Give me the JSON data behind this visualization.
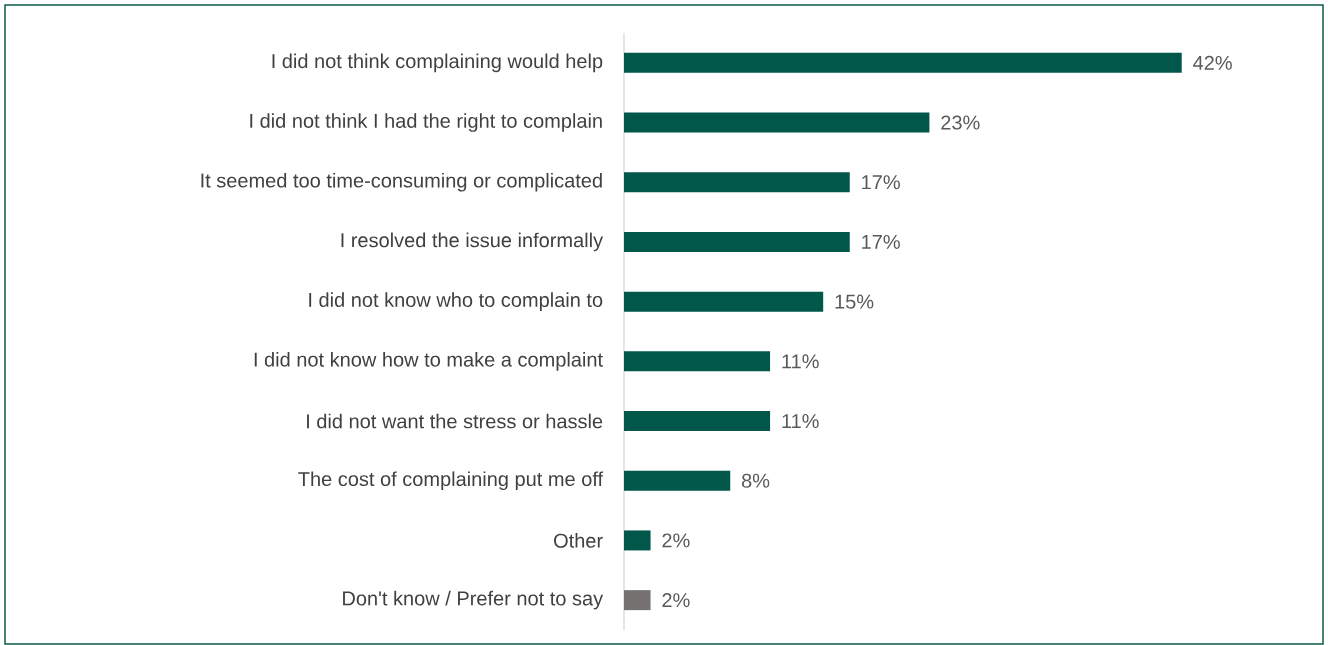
{
  "chart_data": {
    "type": "bar",
    "orientation": "horizontal",
    "categories": [
      "I did not think complaining would help",
      "I did not think I had the right to complain",
      "It seemed too time-consuming or complicated",
      "I resolved the issue informally",
      "I did not know who to complain to",
      "I did not know how to make a complaint",
      "I did not want the stress or hassle",
      "The cost of complaining put me off",
      "Other",
      "Don't know / Prefer not to say"
    ],
    "values": [
      42,
      23,
      17,
      17,
      15,
      11,
      11,
      8,
      2,
      2
    ],
    "value_labels": [
      "42%",
      "23%",
      "17%",
      "17%",
      "15%",
      "11%",
      "11%",
      "8%",
      "2%",
      "2%"
    ],
    "colors": [
      "#00574a",
      "#00574a",
      "#00574a",
      "#00574a",
      "#00574a",
      "#00574a",
      "#00574a",
      "#00574a",
      "#00574a",
      "#767171"
    ]
  }
}
